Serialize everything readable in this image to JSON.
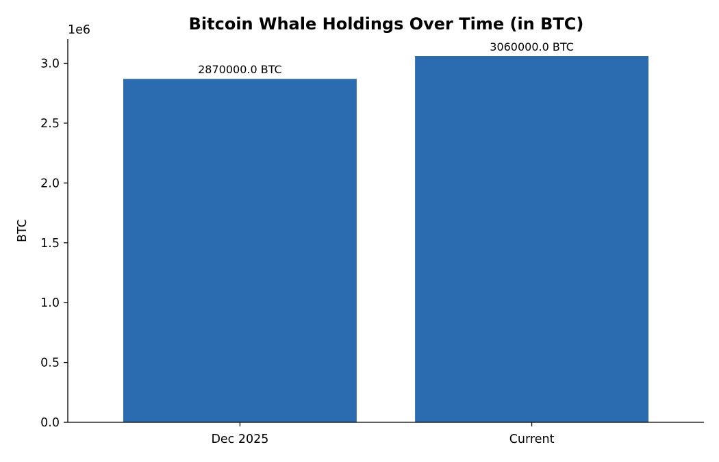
{
  "chart_data": {
    "type": "bar",
    "title": "Bitcoin Whale Holdings Over Time (in BTC)",
    "xlabel": "",
    "ylabel": "BTC",
    "categories": [
      "Dec 2025",
      "Current"
    ],
    "values": [
      2870000,
      3060000
    ],
    "value_labels": [
      "2870000.0 BTC",
      "3060000.0 BTC"
    ],
    "ylim": [
      0,
      3210000
    ],
    "yticks": [
      0,
      500000,
      1000000,
      1500000,
      2000000,
      2500000,
      3000000
    ],
    "ytick_labels": [
      "0.0",
      "0.5",
      "1.0",
      "1.5",
      "2.0",
      "2.5",
      "3.0"
    ],
    "offset_label": "1e6",
    "bar_color": "#2b6cb0",
    "grid": false
  }
}
